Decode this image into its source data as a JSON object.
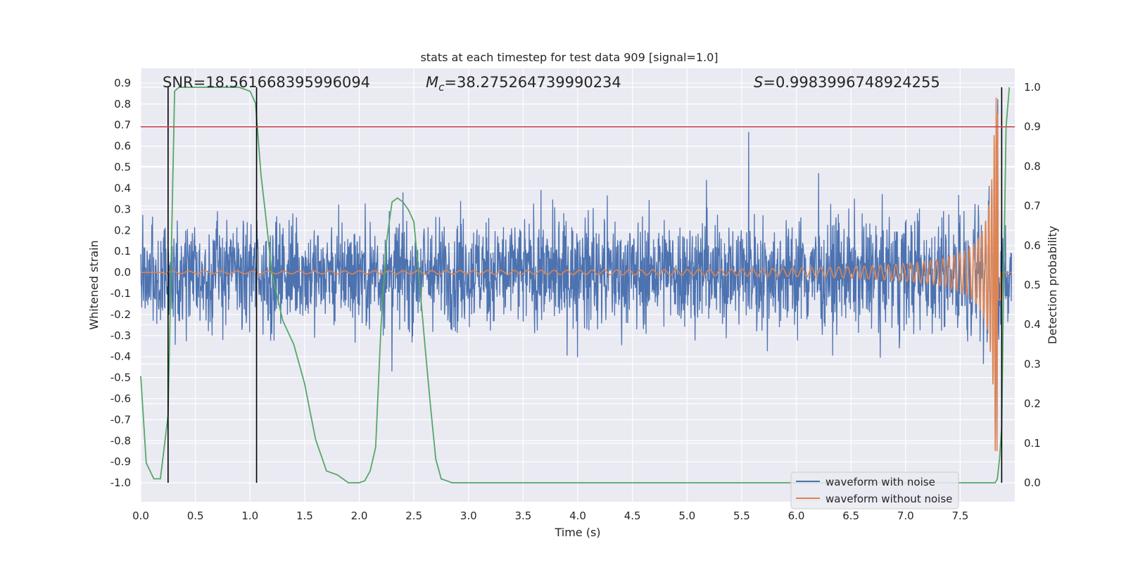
{
  "chart_data": {
    "type": "line",
    "title": "stats at each timestep for test data 909 [signal=1.0]",
    "xlabel": "Time (s)",
    "ylabel": "Whitened strain",
    "y2label": "Detection probability",
    "xlim": [
      0.0,
      8.0
    ],
    "ylim": [
      -1.09,
      0.97
    ],
    "y2lim": [
      -0.048,
      1.048
    ],
    "xticks": [
      "0.0",
      "0.5",
      "1.0",
      "1.5",
      "2.0",
      "2.5",
      "3.0",
      "3.5",
      "4.0",
      "4.5",
      "5.0",
      "5.5",
      "6.0",
      "6.5",
      "7.0",
      "7.5"
    ],
    "yticks": [
      "0.9",
      "0.8",
      "0.7",
      "0.6",
      "0.5",
      "0.4",
      "0.3",
      "0.2",
      "0.1",
      "0.0",
      "-0.1",
      "-0.2",
      "-0.3",
      "-0.4",
      "-0.5",
      "-0.6",
      "-0.7",
      "-0.8",
      "-0.9",
      "-1.0"
    ],
    "y2ticks": [
      "1.0",
      "0.9",
      "0.8",
      "0.7",
      "0.6",
      "0.5",
      "0.4",
      "0.3",
      "0.2",
      "0.1",
      "0.0"
    ],
    "annotations": {
      "snr": "SNR=18.561668395996094",
      "mc_symbol": "M",
      "mc_sub": "c",
      "mc_value": "=38.275264739990234",
      "s_symbol": "S",
      "s_value": "=0.9983996748924255"
    },
    "series": [
      {
        "name": "waveform with noise",
        "color": "#4c72b0",
        "axis": "left",
        "noise_amplitude_typical": 0.25,
        "noise_amplitude_peak": 0.72,
        "merger_time": 7.85
      },
      {
        "name": "waveform without noise",
        "color": "#dd8452",
        "axis": "left",
        "chirp_start": 3.5,
        "merger_time": 7.85,
        "peak_amplitude": 0.85
      },
      {
        "name": "detection probability",
        "color": "#55a868",
        "axis": "right",
        "x": [
          0.0,
          0.05,
          0.12,
          0.18,
          0.25,
          0.31,
          0.35,
          0.4,
          0.5,
          0.6,
          0.7,
          0.8,
          0.9,
          1.0,
          1.05,
          1.1,
          1.15,
          1.2,
          1.3,
          1.4,
          1.5,
          1.55,
          1.6,
          1.65,
          1.7,
          1.8,
          1.9,
          2.0,
          2.05,
          2.1,
          2.15,
          2.2,
          2.25,
          2.3,
          2.35,
          2.4,
          2.45,
          2.5,
          2.55,
          2.6,
          2.65,
          2.7,
          2.75,
          2.8,
          2.85,
          3.0,
          7.82,
          7.84,
          7.86,
          7.88,
          7.9,
          7.92,
          7.95
        ],
        "y": [
          0.27,
          0.05,
          0.01,
          0.01,
          0.17,
          0.99,
          1.0,
          1.0,
          1.0,
          1.0,
          1.0,
          1.0,
          1.0,
          0.99,
          0.96,
          0.78,
          0.66,
          0.53,
          0.41,
          0.35,
          0.25,
          0.18,
          0.11,
          0.07,
          0.03,
          0.02,
          0.0,
          0.0,
          0.005,
          0.03,
          0.09,
          0.4,
          0.61,
          0.71,
          0.72,
          0.71,
          0.69,
          0.66,
          0.51,
          0.35,
          0.2,
          0.06,
          0.01,
          0.005,
          0.0,
          0.0,
          0.0,
          0.01,
          0.06,
          0.14,
          0.55,
          0.9,
          1.0
        ]
      }
    ],
    "threshold_line": {
      "color": "#c44e52",
      "y2": 0.9
    },
    "vertical_markers_x": [
      0.25,
      1.06,
      7.88
    ],
    "legend": {
      "placement": "bottom-right",
      "entries": [
        "waveform with noise",
        "waveform without noise"
      ]
    },
    "grid": true
  }
}
